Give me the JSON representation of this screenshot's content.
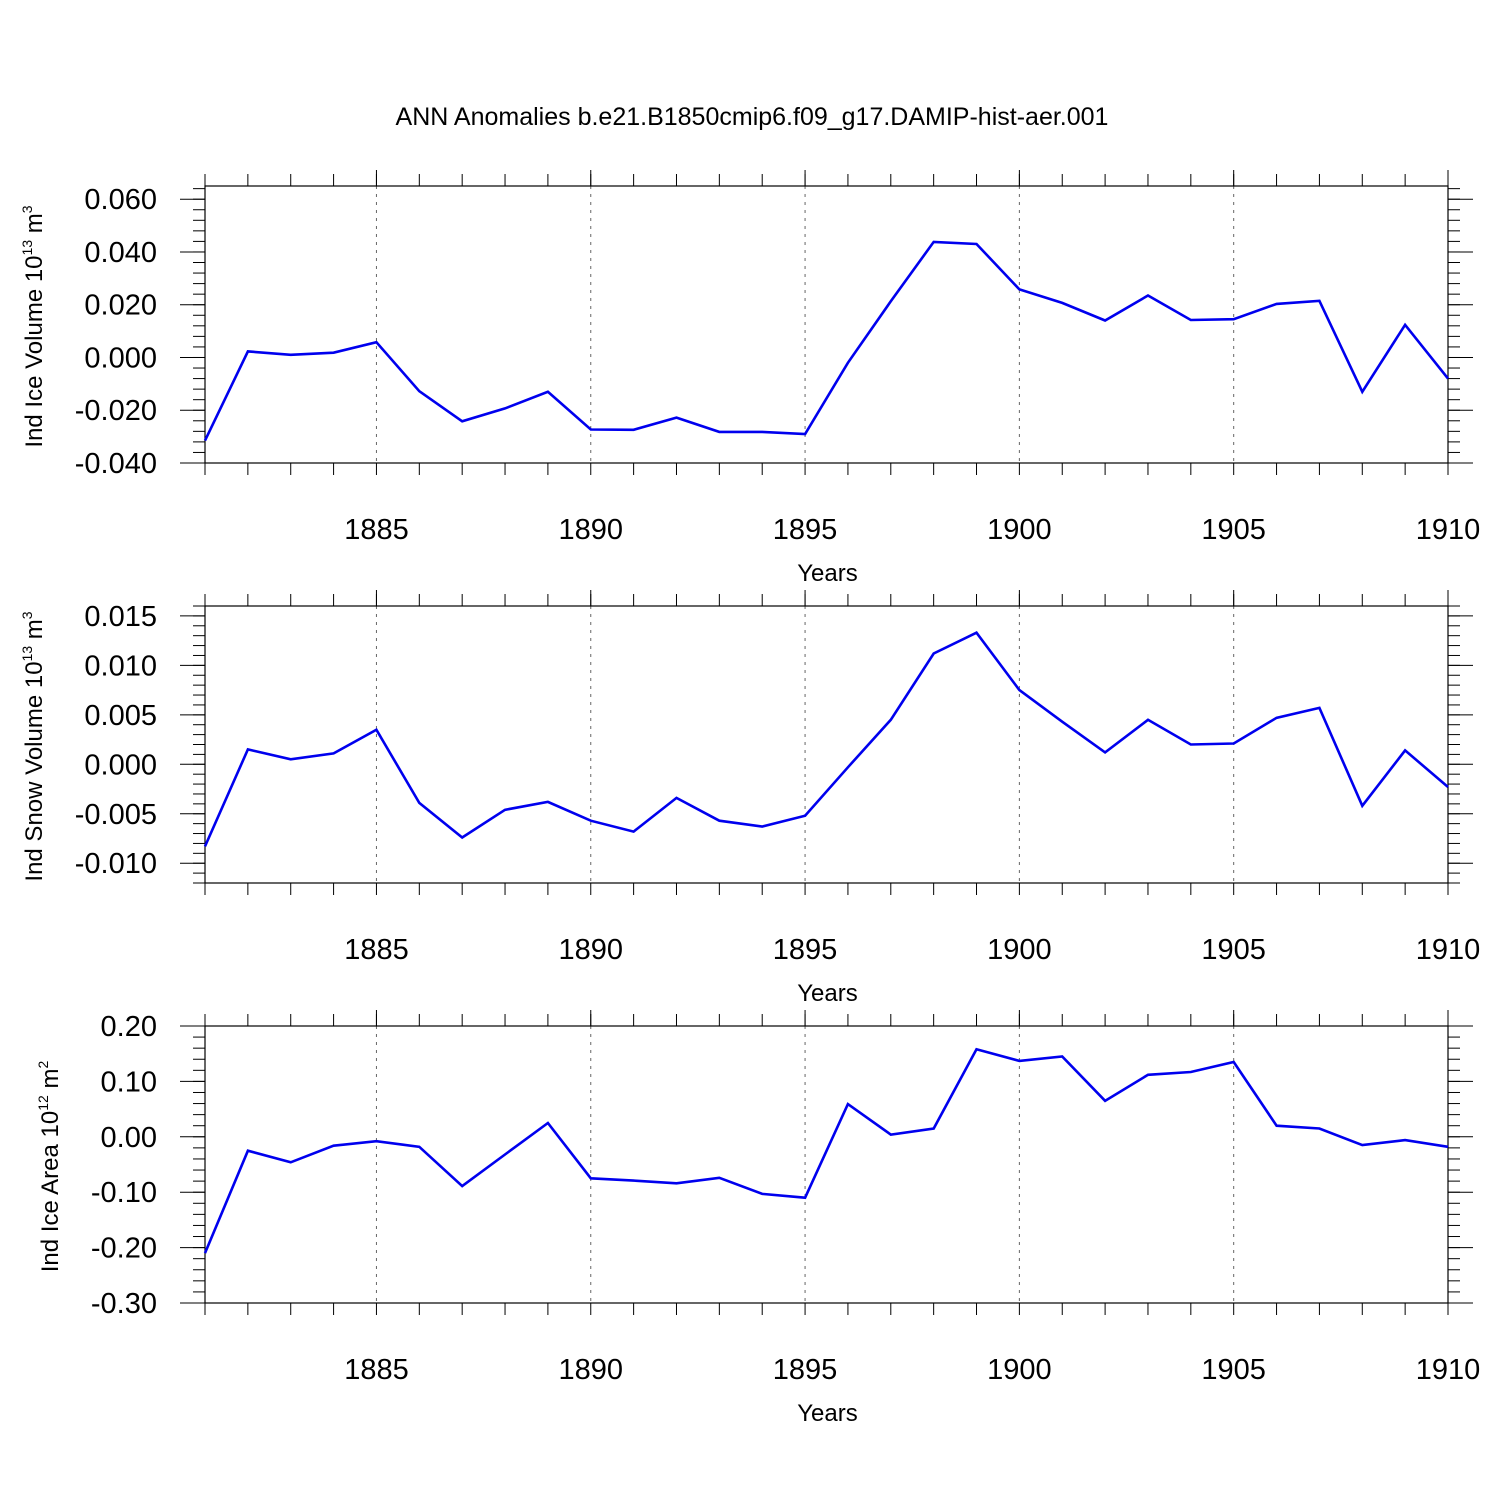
{
  "title": "ANN Anomalies b.e21.B1850cmip6.f09_g17.DAMIP-hist-aer.001",
  "chart_data": [
    {
      "type": "line",
      "xlabel": "Years",
      "ylabel": {
        "prefix": "Ind Ice Volume 10",
        "exp": "13",
        "unit": " m",
        "unit_exp": "3"
      },
      "xlim": [
        1881,
        1910
      ],
      "ylim": [
        -0.04,
        0.065
      ],
      "xticks": [
        "1885",
        "1890",
        "1895",
        "1900",
        "1905",
        "1910"
      ],
      "yticks": [
        "0.060",
        "0.040",
        "0.020",
        "0.000",
        "-0.020",
        "-0.040"
      ],
      "ytick_values": [
        0.06,
        0.04,
        0.02,
        0.0,
        -0.02,
        -0.04
      ],
      "grid": "vertical dotted at major x ticks",
      "color": "#0000ee",
      "x": [
        1881,
        1882,
        1883,
        1884,
        1885,
        1886,
        1887,
        1888,
        1889,
        1890,
        1891,
        1892,
        1893,
        1894,
        1895,
        1896,
        1897,
        1898,
        1899,
        1900,
        1901,
        1902,
        1903,
        1904,
        1905,
        1906,
        1907,
        1908,
        1909,
        1910
      ],
      "values": [
        -0.0315,
        0.0023,
        0.001,
        0.0018,
        0.0058,
        -0.0128,
        -0.0242,
        -0.0193,
        -0.013,
        -0.0273,
        -0.0274,
        -0.0228,
        -0.0282,
        -0.0282,
        -0.029,
        -0.002,
        0.0213,
        0.0438,
        0.043,
        0.0258,
        0.0207,
        0.014,
        0.0235,
        0.0142,
        0.0145,
        0.0203,
        0.0215,
        -0.013,
        0.0124,
        -0.008
      ]
    },
    {
      "type": "line",
      "xlabel": "Years",
      "ylabel": {
        "prefix": "Ind Snow Volume 10",
        "exp": "13",
        "unit": " m",
        "unit_exp": "3"
      },
      "xlim": [
        1881,
        1910
      ],
      "ylim": [
        -0.012,
        0.016
      ],
      "xticks": [
        "1885",
        "1890",
        "1895",
        "1900",
        "1905",
        "1910"
      ],
      "yticks": [
        "0.015",
        "0.010",
        "0.005",
        "0.000",
        "-0.005",
        "-0.010"
      ],
      "ytick_values": [
        0.015,
        0.01,
        0.005,
        0.0,
        -0.005,
        -0.01
      ],
      "grid": "vertical dotted at major x ticks",
      "color": "#0000ee",
      "x": [
        1881,
        1882,
        1883,
        1884,
        1885,
        1886,
        1887,
        1888,
        1889,
        1890,
        1891,
        1892,
        1893,
        1894,
        1895,
        1896,
        1897,
        1898,
        1899,
        1900,
        1901,
        1902,
        1903,
        1904,
        1905,
        1906,
        1907,
        1908,
        1909,
        1910
      ],
      "values": [
        -0.0083,
        0.0015,
        0.0005,
        0.0011,
        0.0035,
        -0.0039,
        -0.0074,
        -0.0046,
        -0.0038,
        -0.0057,
        -0.0068,
        -0.0034,
        -0.0057,
        -0.0063,
        -0.0052,
        -0.0003,
        0.0045,
        0.0112,
        0.0133,
        0.0075,
        0.0043,
        0.0012,
        0.0045,
        0.002,
        0.0021,
        0.0047,
        0.0057,
        -0.0042,
        0.0014,
        -0.0023
      ]
    },
    {
      "type": "line",
      "xlabel": "Years",
      "ylabel": {
        "prefix": "Ind Ice Area 10",
        "exp": "12",
        "unit": " m",
        "unit_exp": "2"
      },
      "xlim": [
        1881,
        1910
      ],
      "ylim": [
        -0.3,
        0.2
      ],
      "xticks": [
        "1885",
        "1890",
        "1895",
        "1900",
        "1905",
        "1910"
      ],
      "yticks": [
        "0.20",
        "0.10",
        "0.00",
        "-0.10",
        "-0.20",
        "-0.30"
      ],
      "ytick_values": [
        0.2,
        0.1,
        0.0,
        -0.1,
        -0.2,
        -0.3
      ],
      "grid": "vertical dotted at major x ticks",
      "color": "#0000ee",
      "x": [
        1881,
        1882,
        1883,
        1884,
        1885,
        1886,
        1887,
        1888,
        1889,
        1890,
        1891,
        1892,
        1893,
        1894,
        1895,
        1896,
        1897,
        1898,
        1899,
        1900,
        1901,
        1902,
        1903,
        1904,
        1905,
        1906,
        1907,
        1908,
        1909,
        1910
      ],
      "values": [
        -0.21,
        -0.025,
        -0.046,
        -0.016,
        -0.008,
        -0.018,
        -0.089,
        -0.032,
        0.025,
        -0.075,
        -0.079,
        -0.084,
        -0.074,
        -0.103,
        -0.11,
        0.059,
        0.004,
        0.015,
        0.158,
        0.137,
        0.145,
        0.065,
        0.112,
        0.117,
        0.135,
        0.02,
        0.015,
        -0.015,
        -0.006,
        -0.018
      ]
    }
  ]
}
